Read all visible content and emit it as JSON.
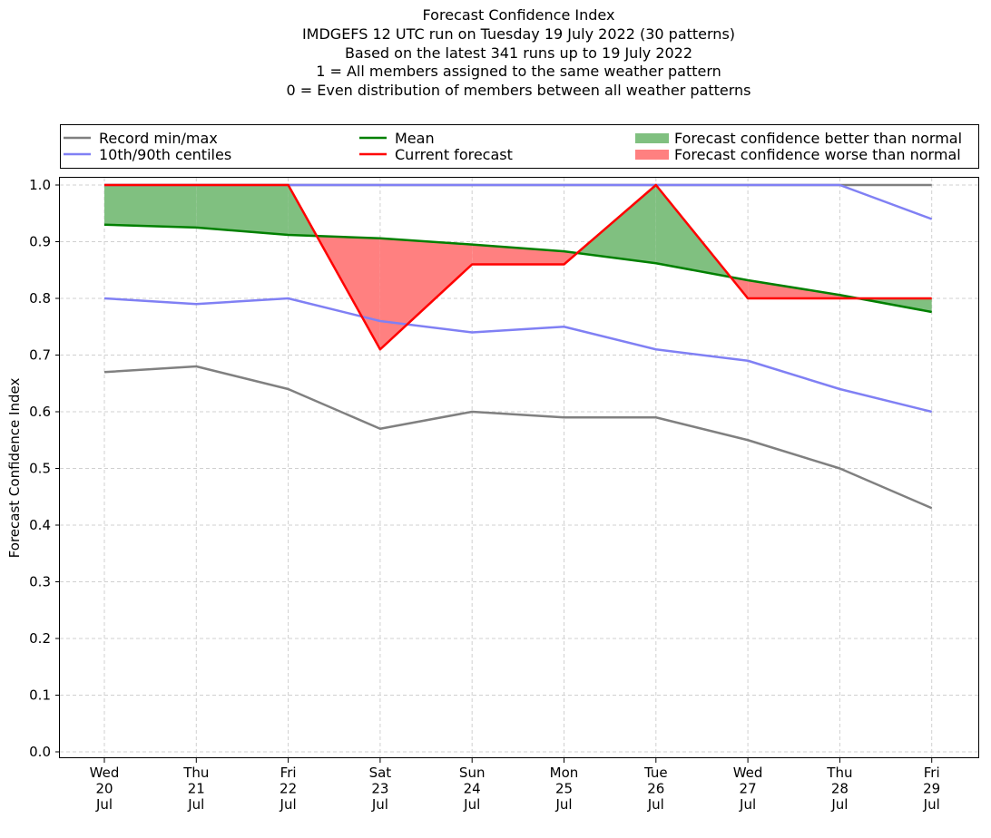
{
  "title_lines": [
    "Forecast Confidence Index",
    "IMDGEFS 12 UTC run on Tuesday 19 July 2022 (30 patterns)",
    "Based on the latest 341 runs up to 19 July 2022",
    "1 = All members assigned to the same weather pattern",
    "0 = Even distribution of members between all weather patterns"
  ],
  "colors": {
    "record": "#808080",
    "centiles": "#8080f4",
    "mean": "#008000",
    "current": "#ff0000",
    "better_fill": "#80c080",
    "worse_fill": "#ff8080",
    "grid": "#d0d0d0"
  },
  "chart_data": {
    "type": "line",
    "title": "Forecast Confidence Index",
    "ylabel": "Forecast Confidence Index",
    "xlabel": "",
    "ylim": [
      0.0,
      1.0
    ],
    "yticks": [
      "0.0",
      "0.1",
      "0.2",
      "0.3",
      "0.4",
      "0.5",
      "0.6",
      "0.7",
      "0.8",
      "0.9",
      "1.0"
    ],
    "grid": true,
    "legend_placement": "top",
    "categories": [
      [
        "Wed",
        "20",
        "Jul"
      ],
      [
        "Thu",
        "21",
        "Jul"
      ],
      [
        "Fri",
        "22",
        "Jul"
      ],
      [
        "Sat",
        "23",
        "Jul"
      ],
      [
        "Sun",
        "24",
        "Jul"
      ],
      [
        "Mon",
        "25",
        "Jul"
      ],
      [
        "Tue",
        "26",
        "Jul"
      ],
      [
        "Wed",
        "27",
        "Jul"
      ],
      [
        "Thu",
        "28",
        "Jul"
      ],
      [
        "Fri",
        "29",
        "Jul"
      ]
    ],
    "series": {
      "record_min": [
        0.67,
        0.68,
        0.64,
        0.57,
        0.6,
        0.59,
        0.59,
        0.55,
        0.5,
        0.43
      ],
      "record_max": [
        1.0,
        1.0,
        1.0,
        1.0,
        1.0,
        1.0,
        1.0,
        1.0,
        1.0,
        1.0
      ],
      "centile_10": [
        0.8,
        0.79,
        0.8,
        0.76,
        0.74,
        0.75,
        0.71,
        0.69,
        0.64,
        0.6
      ],
      "centile_90": [
        1.0,
        1.0,
        1.0,
        1.0,
        1.0,
        1.0,
        1.0,
        1.0,
        1.0,
        0.94
      ],
      "mean": [
        0.93,
        0.925,
        0.912,
        0.906,
        0.895,
        0.883,
        0.862,
        0.832,
        0.806,
        0.776
      ],
      "current": [
        1.0,
        1.0,
        1.0,
        0.71,
        0.86,
        0.86,
        1.0,
        0.8,
        0.8,
        0.8
      ]
    },
    "legend": [
      {
        "key": "record",
        "label": "Record min/max",
        "kind": "line"
      },
      {
        "key": "centiles",
        "label": "10th/90th centiles",
        "kind": "line"
      },
      {
        "key": "mean",
        "label": "Mean",
        "kind": "line"
      },
      {
        "key": "current",
        "label": "Current forecast",
        "kind": "line"
      },
      {
        "key": "better_fill",
        "label": "Forecast confidence better than normal",
        "kind": "patch"
      },
      {
        "key": "worse_fill",
        "label": "Forecast confidence worse than normal",
        "kind": "patch"
      }
    ]
  }
}
